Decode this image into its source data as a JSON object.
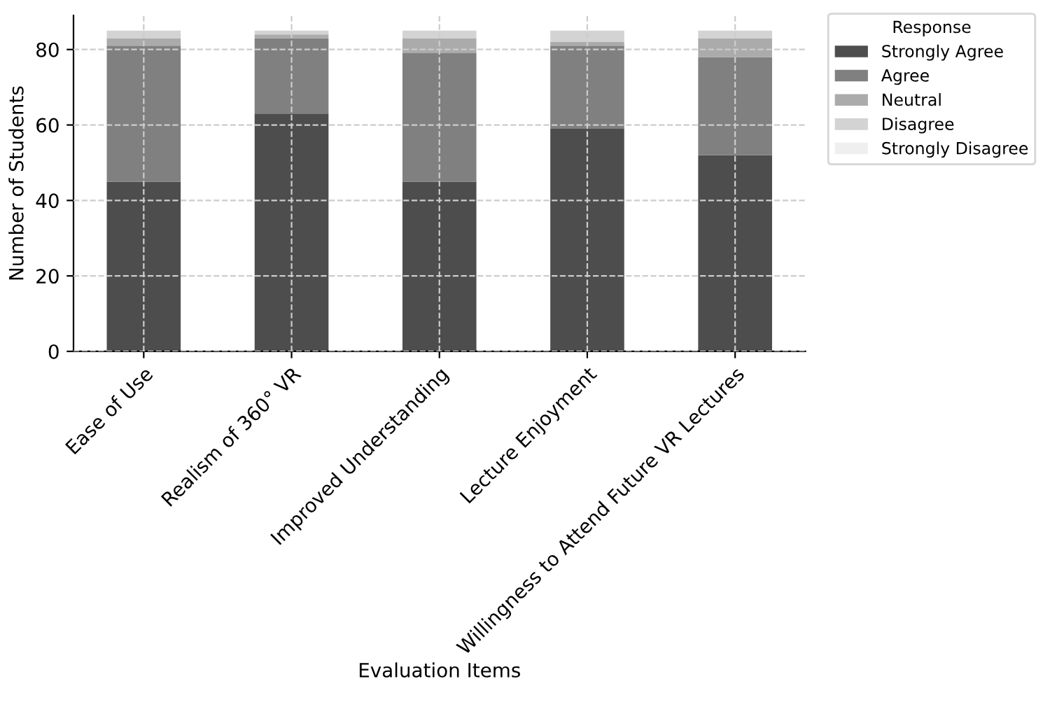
{
  "chart_data": {
    "type": "bar",
    "stacked": true,
    "xlabel": "Evaluation Items",
    "ylabel": "Number of Students",
    "legend_title": "Response",
    "categories": [
      "Ease of Use",
      "Realism of 360° VR",
      "Improved Understanding",
      "Lecture Enjoyment",
      "Willingness to Attend Future VR Lectures"
    ],
    "series": [
      {
        "name": "Strongly Agree",
        "color": "#4d4d4d",
        "values": [
          45,
          63,
          45,
          59,
          52
        ]
      },
      {
        "name": "Agree",
        "color": "#808080",
        "values": [
          36,
          20,
          34,
          22,
          26
        ]
      },
      {
        "name": "Neutral",
        "color": "#ababab",
        "values": [
          2,
          1,
          4,
          1,
          5
        ]
      },
      {
        "name": "Disagree",
        "color": "#d3d3d3",
        "values": [
          2,
          1,
          2,
          3,
          2
        ]
      },
      {
        "name": "Strongly Disagree",
        "color": "#efefef",
        "values": [
          0,
          0,
          0,
          0,
          0
        ]
      }
    ],
    "ylim": [
      0,
      89
    ],
    "yticks": [
      0,
      20,
      40,
      60,
      80
    ],
    "grid": true,
    "legend": "top right"
  }
}
